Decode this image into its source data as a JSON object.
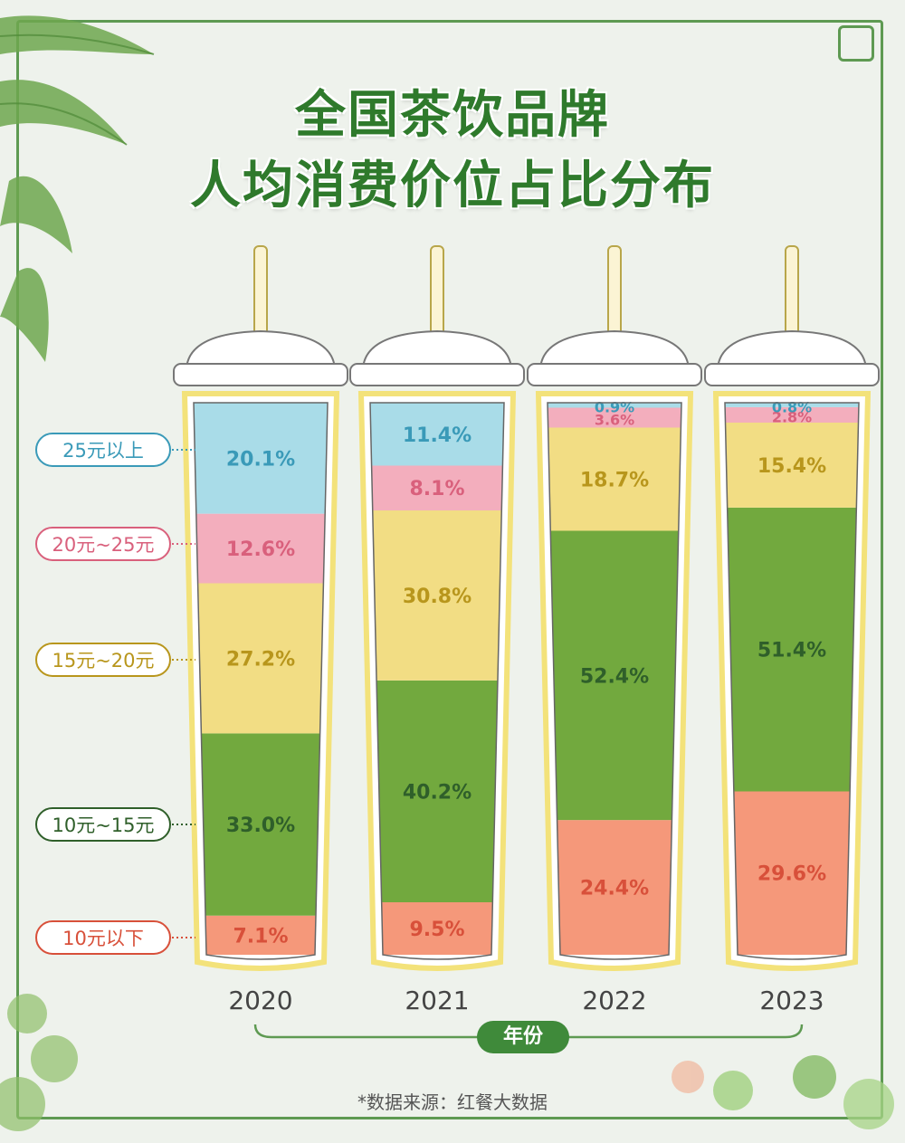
{
  "title_line1": "全国茶饮品牌",
  "title_line2": "人均消费价位占比分布",
  "x_axis_label": "年份",
  "source_note": "*数据来源：红餐大数据",
  "colors": {
    "below10": "#f5987a",
    "10to15": "#72a93e",
    "15to20": "#f2dd84",
    "20to25": "#f3aebd",
    "above25": "#a9dce8",
    "above25_text": "#3a9ab8",
    "20to25_text": "#d9607c",
    "15to20_text": "#b8961c",
    "10to15_text": "#2f5f2a",
    "below10_text": "#d8503a",
    "frame": "#5e9a52"
  },
  "chart_data": {
    "type": "bar",
    "stacked": true,
    "categories": [
      "2020",
      "2021",
      "2022",
      "2023"
    ],
    "series": [
      {
        "name": "10元以下",
        "values": [
          7.1,
          9.5,
          24.4,
          29.6
        ],
        "labels": [
          "7.1%",
          "9.5%",
          "24.4%",
          "29.6%"
        ]
      },
      {
        "name": "10元~15元",
        "values": [
          33.0,
          40.2,
          52.4,
          51.4
        ],
        "labels": [
          "33.0%",
          "40.2%",
          "52.4%",
          "51.4%"
        ]
      },
      {
        "name": "15元~20元",
        "values": [
          27.2,
          30.8,
          18.7,
          15.4
        ],
        "labels": [
          "27.2%",
          "30.8%",
          "18.7%",
          "15.4%"
        ]
      },
      {
        "name": "20元~25元",
        "values": [
          12.6,
          8.1,
          3.6,
          2.8
        ],
        "labels": [
          "12.6%",
          "8.1%",
          "3.6%",
          "2.8%"
        ]
      },
      {
        "name": "25元以上",
        "values": [
          20.1,
          11.4,
          0.9,
          0.8
        ],
        "labels": [
          "20.1%",
          "11.4%",
          "0.9%",
          "0.8%"
        ]
      }
    ],
    "xlabel": "年份",
    "ylabel": "",
    "ylim": [
      0,
      100
    ],
    "legend": "left"
  }
}
